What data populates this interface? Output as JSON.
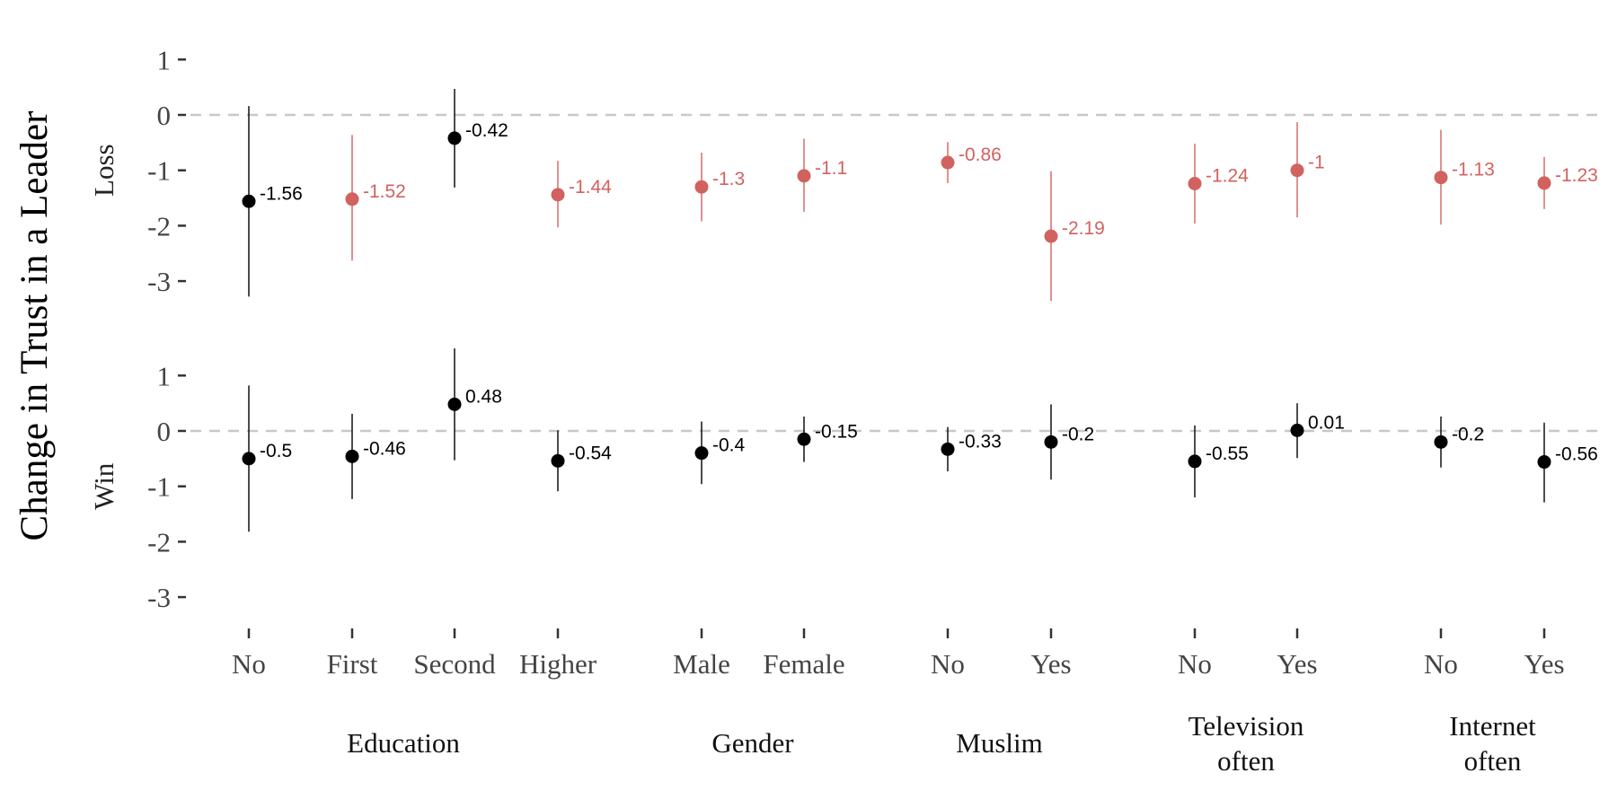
{
  "chart_data": {
    "type": "scatter",
    "ylabel": "Change in Trust in a Leader",
    "ylim": [
      -3.5,
      1.5
    ],
    "yticks": [
      1,
      0,
      -1,
      -2,
      -3
    ],
    "reference_line": 0,
    "grid": false,
    "colors": {
      "significant": "#d1625f",
      "not_significant": "#000000",
      "reference": "#c8c8c8"
    },
    "categories": [
      "No",
      "First",
      "Second",
      "Higher",
      "Male",
      "Female",
      "No",
      "Yes",
      "No",
      "Yes",
      "No",
      "Yes"
    ],
    "groups": [
      {
        "label": "Education",
        "members": [
          0,
          1,
          2,
          3
        ]
      },
      {
        "label": "Gender",
        "members": [
          4,
          5
        ]
      },
      {
        "label": "Muslim",
        "members": [
          6,
          7
        ]
      },
      {
        "label": "Television\noften",
        "members": [
          8,
          9
        ]
      },
      {
        "label": "Internet\noften",
        "members": [
          10,
          11
        ]
      }
    ],
    "panels": [
      {
        "name": "Loss",
        "points": [
          {
            "value": -1.56,
            "lower": -3.28,
            "upper": 0.16,
            "label": "-1.56",
            "significant": false
          },
          {
            "value": -1.52,
            "lower": -2.63,
            "upper": -0.36,
            "label": "-1.52",
            "significant": true
          },
          {
            "value": -0.42,
            "lower": -1.31,
            "upper": 0.47,
            "label": "-0.42",
            "significant": false
          },
          {
            "value": -1.44,
            "lower": -2.03,
            "upper": -0.83,
            "label": "-1.44",
            "significant": true
          },
          {
            "value": -1.3,
            "lower": -1.92,
            "upper": -0.68,
            "label": "-1.3",
            "significant": true
          },
          {
            "value": -1.1,
            "lower": -1.75,
            "upper": -0.43,
            "label": "-1.1",
            "significant": true
          },
          {
            "value": -0.86,
            "lower": -1.23,
            "upper": -0.49,
            "label": "-0.86",
            "significant": true
          },
          {
            "value": -2.19,
            "lower": -3.36,
            "upper": -1.02,
            "label": "-2.19",
            "significant": true
          },
          {
            "value": -1.24,
            "lower": -1.96,
            "upper": -0.52,
            "label": "-1.24",
            "significant": true
          },
          {
            "value": -1.0,
            "lower": -1.85,
            "upper": -0.13,
            "label": "-1",
            "significant": true
          },
          {
            "value": -1.13,
            "lower": -1.98,
            "upper": -0.27,
            "label": "-1.13",
            "significant": true
          },
          {
            "value": -1.23,
            "lower": -1.7,
            "upper": -0.76,
            "label": "-1.23",
            "significant": true
          }
        ]
      },
      {
        "name": "Win",
        "points": [
          {
            "value": -0.5,
            "lower": -1.82,
            "upper": 0.82,
            "label": "-0.5",
            "significant": false
          },
          {
            "value": -0.46,
            "lower": -1.23,
            "upper": 0.31,
            "label": "-0.46",
            "significant": false
          },
          {
            "value": 0.48,
            "lower": -0.53,
            "upper": 1.49,
            "label": "0.48",
            "significant": false
          },
          {
            "value": -0.54,
            "lower": -1.09,
            "upper": 0.01,
            "label": "-0.54",
            "significant": false
          },
          {
            "value": -0.4,
            "lower": -0.96,
            "upper": 0.17,
            "label": "-0.4",
            "significant": false
          },
          {
            "value": -0.15,
            "lower": -0.56,
            "upper": 0.26,
            "label": "-0.15",
            "significant": false
          },
          {
            "value": -0.33,
            "lower": -0.73,
            "upper": 0.07,
            "label": "-0.33",
            "significant": false
          },
          {
            "value": -0.2,
            "lower": -0.88,
            "upper": 0.48,
            "label": "-0.2",
            "significant": false
          },
          {
            "value": -0.55,
            "lower": -1.2,
            "upper": 0.1,
            "label": "-0.55",
            "significant": false
          },
          {
            "value": 0.01,
            "lower": -0.49,
            "upper": 0.5,
            "label": "0.01",
            "significant": false
          },
          {
            "value": -0.2,
            "lower": -0.66,
            "upper": 0.26,
            "label": "-0.2",
            "significant": false
          },
          {
            "value": -0.56,
            "lower": -1.29,
            "upper": 0.15,
            "label": "-0.56",
            "significant": false
          }
        ]
      }
    ]
  }
}
